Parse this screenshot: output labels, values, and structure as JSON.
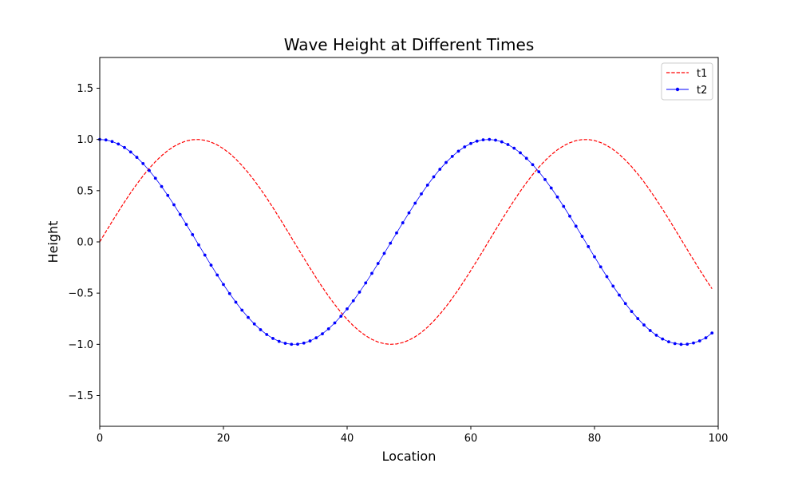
{
  "chart_data": {
    "type": "line",
    "title": "Wave Height at Different Times",
    "xlabel": "Location",
    "ylabel": "Height",
    "xlim": [
      0,
      100
    ],
    "ylim": [
      -1.8,
      1.8
    ],
    "x_ticks": [
      0,
      20,
      40,
      60,
      80,
      100
    ],
    "y_ticks": [
      -1.5,
      -1.0,
      -0.5,
      0.0,
      0.5,
      1.0,
      1.5
    ],
    "x_tick_labels": [
      "0",
      "20",
      "40",
      "60",
      "80",
      "100"
    ],
    "y_tick_labels": [
      "−1.5",
      "−1.0",
      "−0.5",
      "0.0",
      "0.5",
      "1.0",
      "1.5"
    ],
    "grid": false,
    "legend_position": "top-right",
    "x": [
      0,
      1,
      2,
      3,
      4,
      5,
      6,
      7,
      8,
      9,
      10,
      11,
      12,
      13,
      14,
      15,
      16,
      17,
      18,
      19,
      20,
      21,
      22,
      23,
      24,
      25,
      26,
      27,
      28,
      29,
      30,
      31,
      32,
      33,
      34,
      35,
      36,
      37,
      38,
      39,
      40,
      41,
      42,
      43,
      44,
      45,
      46,
      47,
      48,
      49,
      50,
      51,
      52,
      53,
      54,
      55,
      56,
      57,
      58,
      59,
      60,
      61,
      62,
      63,
      64,
      65,
      66,
      67,
      68,
      69,
      70,
      71,
      72,
      73,
      74,
      75,
      76,
      77,
      78,
      79,
      80,
      81,
      82,
      83,
      84,
      85,
      86,
      87,
      88,
      89,
      90,
      91,
      92,
      93,
      94,
      95,
      96,
      97,
      98,
      99
    ],
    "series": [
      {
        "name": "t1",
        "color": "#ff0000",
        "style": "dashed",
        "markers": false,
        "values": [
          0.0,
          0.0998,
          0.1987,
          0.2955,
          0.3894,
          0.4794,
          0.5646,
          0.6442,
          0.7174,
          0.7833,
          0.8415,
          0.8912,
          0.932,
          0.9636,
          0.9854,
          0.9975,
          0.9996,
          0.9917,
          0.9738,
          0.9463,
          0.9093,
          0.8632,
          0.8085,
          0.7457,
          0.6755,
          0.5985,
          0.5155,
          0.4274,
          0.335,
          0.2392,
          0.1411,
          0.0416,
          -0.0584,
          -0.1577,
          -0.2555,
          -0.3508,
          -0.4425,
          -0.5298,
          -0.6119,
          -0.6878,
          -0.7568,
          -0.8183,
          -0.8716,
          -0.9162,
          -0.9516,
          -0.9775,
          -0.9937,
          -0.9999,
          -0.9962,
          -0.9825,
          -0.9589,
          -0.9258,
          -0.8835,
          -0.8323,
          -0.7728,
          -0.7055,
          -0.6313,
          -0.5507,
          -0.4646,
          -0.3739,
          -0.2794,
          -0.1822,
          -0.0831,
          0.0168,
          0.1165,
          0.215,
          0.3115,
          0.4048,
          0.4941,
          0.5784,
          0.657,
          0.729,
          0.7937,
          0.8504,
          0.8987,
          0.938,
          0.9679,
          0.9882,
          0.9985,
          0.9989,
          0.9894,
          0.9699,
          0.9407,
          0.9022,
          0.8546,
          0.7985,
          0.7344,
          0.663,
          0.585,
          0.501,
          0.4121,
          0.319,
          0.2229,
          0.1245,
          0.0248,
          -0.0752,
          -0.1743,
          -0.2718,
          -0.3665,
          -0.4575
        ]
      },
      {
        "name": "t2",
        "color": "#0000ff",
        "style": "solid",
        "markers": true,
        "values": [
          1.0,
          0.995,
          0.9801,
          0.9553,
          0.9211,
          0.8776,
          0.8253,
          0.7648,
          0.6967,
          0.6216,
          0.5403,
          0.4536,
          0.3624,
          0.2675,
          0.17,
          0.0707,
          -0.0292,
          -0.1288,
          -0.2272,
          -0.3233,
          -0.4161,
          -0.5048,
          -0.5885,
          -0.6663,
          -0.7374,
          -0.8011,
          -0.8569,
          -0.9041,
          -0.9422,
          -0.971,
          -0.99,
          -0.9991,
          -0.9983,
          -0.9875,
          -0.9668,
          -0.9365,
          -0.8968,
          -0.8481,
          -0.791,
          -0.7259,
          -0.6536,
          -0.5748,
          -0.4903,
          -0.4008,
          -0.3073,
          -0.2108,
          -0.1122,
          -0.0124,
          0.0875,
          0.1865,
          0.2837,
          0.378,
          0.4685,
          0.5544,
          0.6347,
          0.7087,
          0.7756,
          0.8347,
          0.8855,
          0.9275,
          0.9602,
          0.9833,
          0.9965,
          0.9999,
          0.9932,
          0.9766,
          0.9502,
          0.9144,
          0.8694,
          0.8157,
          0.7539,
          0.6845,
          0.6084,
          0.5261,
          0.4385,
          0.3466,
          0.2513,
          0.1534,
          0.054,
          -0.0461,
          -0.1455,
          -0.2435,
          -0.3392,
          -0.4314,
          -0.5193,
          -0.602,
          -0.6787,
          -0.7486,
          -0.811,
          -0.8653,
          -0.9111,
          -0.9477,
          -0.975,
          -0.9926,
          -1.0,
          -0.9981,
          -0.9867,
          -0.9661,
          -0.9365,
          -0.8892
        ]
      }
    ]
  }
}
